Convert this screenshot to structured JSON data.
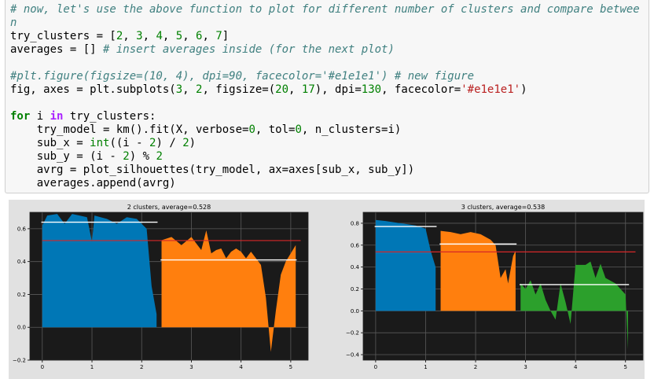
{
  "code_lines": [
    [
      {
        "t": "# now, let's use the above function to plot for different number of clusters and compare betwee",
        "c": "cm"
      }
    ],
    [
      {
        "t": "n",
        "c": "cm"
      }
    ],
    [
      {
        "t": "try_clusters = [",
        "c": ""
      },
      {
        "t": "2",
        "c": "num"
      },
      {
        "t": ", ",
        "c": ""
      },
      {
        "t": "3",
        "c": "num"
      },
      {
        "t": ", ",
        "c": ""
      },
      {
        "t": "4",
        "c": "num"
      },
      {
        "t": ", ",
        "c": ""
      },
      {
        "t": "5",
        "c": "num"
      },
      {
        "t": ", ",
        "c": ""
      },
      {
        "t": "6",
        "c": "num"
      },
      {
        "t": ", ",
        "c": ""
      },
      {
        "t": "7",
        "c": "num"
      },
      {
        "t": "]",
        "c": ""
      }
    ],
    [
      {
        "t": "averages = [] ",
        "c": ""
      },
      {
        "t": "# insert averages inside (for the next plot)",
        "c": "cm"
      }
    ],
    [
      {
        "t": "",
        "c": ""
      }
    ],
    [
      {
        "t": "#plt.figure(figsize=(10, 4), dpi=90, facecolor='#e1e1e1') # new figure",
        "c": "cm"
      }
    ],
    [
      {
        "t": "fig, axes = plt.subplots(",
        "c": ""
      },
      {
        "t": "3",
        "c": "num"
      },
      {
        "t": ", ",
        "c": ""
      },
      {
        "t": "2",
        "c": "num"
      },
      {
        "t": ", figsize=(",
        "c": ""
      },
      {
        "t": "20",
        "c": "num"
      },
      {
        "t": ", ",
        "c": ""
      },
      {
        "t": "17",
        "c": "num"
      },
      {
        "t": "), dpi=",
        "c": ""
      },
      {
        "t": "130",
        "c": "num"
      },
      {
        "t": ", facecolor=",
        "c": ""
      },
      {
        "t": "'#e1e1e1'",
        "c": "str"
      },
      {
        "t": ")",
        "c": ""
      }
    ],
    [
      {
        "t": "",
        "c": ""
      }
    ],
    [
      {
        "t": "for",
        "c": "kw"
      },
      {
        "t": " i ",
        "c": ""
      },
      {
        "t": "in",
        "c": "op"
      },
      {
        "t": " try_clusters:",
        "c": ""
      }
    ],
    [
      {
        "t": "    try_model = km().fit(X, verbose=",
        "c": ""
      },
      {
        "t": "0",
        "c": "num"
      },
      {
        "t": ", tol=",
        "c": ""
      },
      {
        "t": "0",
        "c": "num"
      },
      {
        "t": ", n_clusters=i)",
        "c": ""
      }
    ],
    [
      {
        "t": "    sub_x = ",
        "c": ""
      },
      {
        "t": "int",
        "c": "nb"
      },
      {
        "t": "((i - ",
        "c": ""
      },
      {
        "t": "2",
        "c": "num"
      },
      {
        "t": ") / ",
        "c": ""
      },
      {
        "t": "2",
        "c": "num"
      },
      {
        "t": ")",
        "c": ""
      }
    ],
    [
      {
        "t": "    sub_y = (i - ",
        "c": ""
      },
      {
        "t": "2",
        "c": "num"
      },
      {
        "t": ") % ",
        "c": ""
      },
      {
        "t": "2",
        "c": "num"
      }
    ],
    [
      {
        "t": "    avrg = plot_silhouettes(try_model, ax=axes[sub_x, sub_y])",
        "c": ""
      }
    ],
    [
      {
        "t": "    averages.append(avrg)",
        "c": ""
      }
    ]
  ],
  "chart_data": [
    {
      "type": "area",
      "title": "2 clusters, average=0.528",
      "average": 0.528,
      "xlim": [
        -0.25,
        5.35
      ],
      "ylim": [
        -0.2,
        0.7
      ],
      "xticks": [
        0,
        1,
        2,
        3,
        4,
        5
      ],
      "yticks": [
        -0.2,
        0.0,
        0.2,
        0.4,
        0.6
      ],
      "ytick_labels": [
        "−0.2",
        "0.0",
        "0.2",
        "0.4",
        "0.6"
      ],
      "grid": true,
      "clusters": [
        {
          "color": "#0077b6",
          "mean": 0.64,
          "points": [
            [
              0.0,
              0.62
            ],
            [
              0.1,
              0.68
            ],
            [
              0.3,
              0.69
            ],
            [
              0.45,
              0.63
            ],
            [
              0.6,
              0.69
            ],
            [
              0.75,
              0.68
            ],
            [
              0.9,
              0.67
            ],
            [
              1.0,
              0.52
            ],
            [
              1.05,
              0.68
            ],
            [
              1.3,
              0.66
            ],
            [
              1.5,
              0.63
            ],
            [
              1.7,
              0.67
            ],
            [
              1.9,
              0.66
            ],
            [
              2.0,
              0.63
            ],
            [
              2.1,
              0.6
            ],
            [
              2.2,
              0.25
            ],
            [
              2.3,
              0.08
            ],
            [
              2.3,
              0.0
            ]
          ]
        },
        {
          "color": "#ff7f0e",
          "mean": 0.41,
          "points": [
            [
              2.4,
              0.53
            ],
            [
              2.6,
              0.55
            ],
            [
              2.8,
              0.5
            ],
            [
              3.0,
              0.55
            ],
            [
              3.2,
              0.47
            ],
            [
              3.3,
              0.59
            ],
            [
              3.4,
              0.45
            ],
            [
              3.5,
              0.47
            ],
            [
              3.6,
              0.48
            ],
            [
              3.7,
              0.42
            ],
            [
              3.8,
              0.46
            ],
            [
              3.9,
              0.48
            ],
            [
              4.0,
              0.46
            ],
            [
              4.1,
              0.42
            ],
            [
              4.2,
              0.46
            ],
            [
              4.4,
              0.38
            ],
            [
              4.5,
              0.18
            ],
            [
              4.6,
              -0.15
            ],
            [
              4.7,
              0.1
            ],
            [
              4.8,
              0.32
            ],
            [
              4.9,
              0.4
            ],
            [
              5.0,
              0.45
            ],
            [
              5.1,
              0.5
            ],
            [
              5.1,
              0.0
            ]
          ]
        }
      ]
    },
    {
      "type": "area",
      "title": "3 clusters, average=0.538",
      "average": 0.538,
      "xlim": [
        -0.25,
        5.35
      ],
      "ylim": [
        -0.45,
        0.9
      ],
      "xticks": [
        0,
        1,
        2,
        3,
        4,
        5
      ],
      "yticks": [
        -0.4,
        -0.2,
        0.0,
        0.2,
        0.4,
        0.6,
        0.8
      ],
      "ytick_labels": [
        "−0.4",
        "−0.2",
        "0.0",
        "0.2",
        "0.4",
        "0.6",
        "0.8"
      ],
      "grid": true,
      "clusters": [
        {
          "color": "#0077b6",
          "mean": 0.77,
          "points": [
            [
              0.0,
              0.83
            ],
            [
              0.2,
              0.82
            ],
            [
              0.5,
              0.8
            ],
            [
              0.8,
              0.78
            ],
            [
              1.0,
              0.75
            ],
            [
              1.1,
              0.55
            ],
            [
              1.2,
              0.4
            ],
            [
              1.2,
              0.0
            ]
          ]
        },
        {
          "color": "#ff7f0e",
          "mean": 0.61,
          "points": [
            [
              1.3,
              0.73
            ],
            [
              1.5,
              0.72
            ],
            [
              1.7,
              0.7
            ],
            [
              1.9,
              0.72
            ],
            [
              2.1,
              0.7
            ],
            [
              2.3,
              0.65
            ],
            [
              2.4,
              0.6
            ],
            [
              2.45,
              0.45
            ],
            [
              2.5,
              0.3
            ],
            [
              2.6,
              0.38
            ],
            [
              2.65,
              0.25
            ],
            [
              2.75,
              0.5
            ],
            [
              2.8,
              0.55
            ],
            [
              2.8,
              0.0
            ]
          ]
        },
        {
          "color": "#2ca02c",
          "mean": 0.24,
          "points": [
            [
              2.9,
              0.25
            ],
            [
              3.0,
              0.2
            ],
            [
              3.1,
              0.28
            ],
            [
              3.2,
              0.15
            ],
            [
              3.3,
              0.25
            ],
            [
              3.4,
              0.1
            ],
            [
              3.5,
              0.0
            ],
            [
              3.6,
              -0.08
            ],
            [
              3.7,
              0.25
            ],
            [
              3.8,
              0.08
            ],
            [
              3.9,
              -0.12
            ],
            [
              4.0,
              0.42
            ],
            [
              4.2,
              0.42
            ],
            [
              4.3,
              0.45
            ],
            [
              4.4,
              0.3
            ],
            [
              4.5,
              0.43
            ],
            [
              4.6,
              0.3
            ],
            [
              4.8,
              0.25
            ],
            [
              5.0,
              0.15
            ],
            [
              5.05,
              -0.35
            ],
            [
              5.05,
              0.0
            ]
          ]
        }
      ]
    }
  ]
}
